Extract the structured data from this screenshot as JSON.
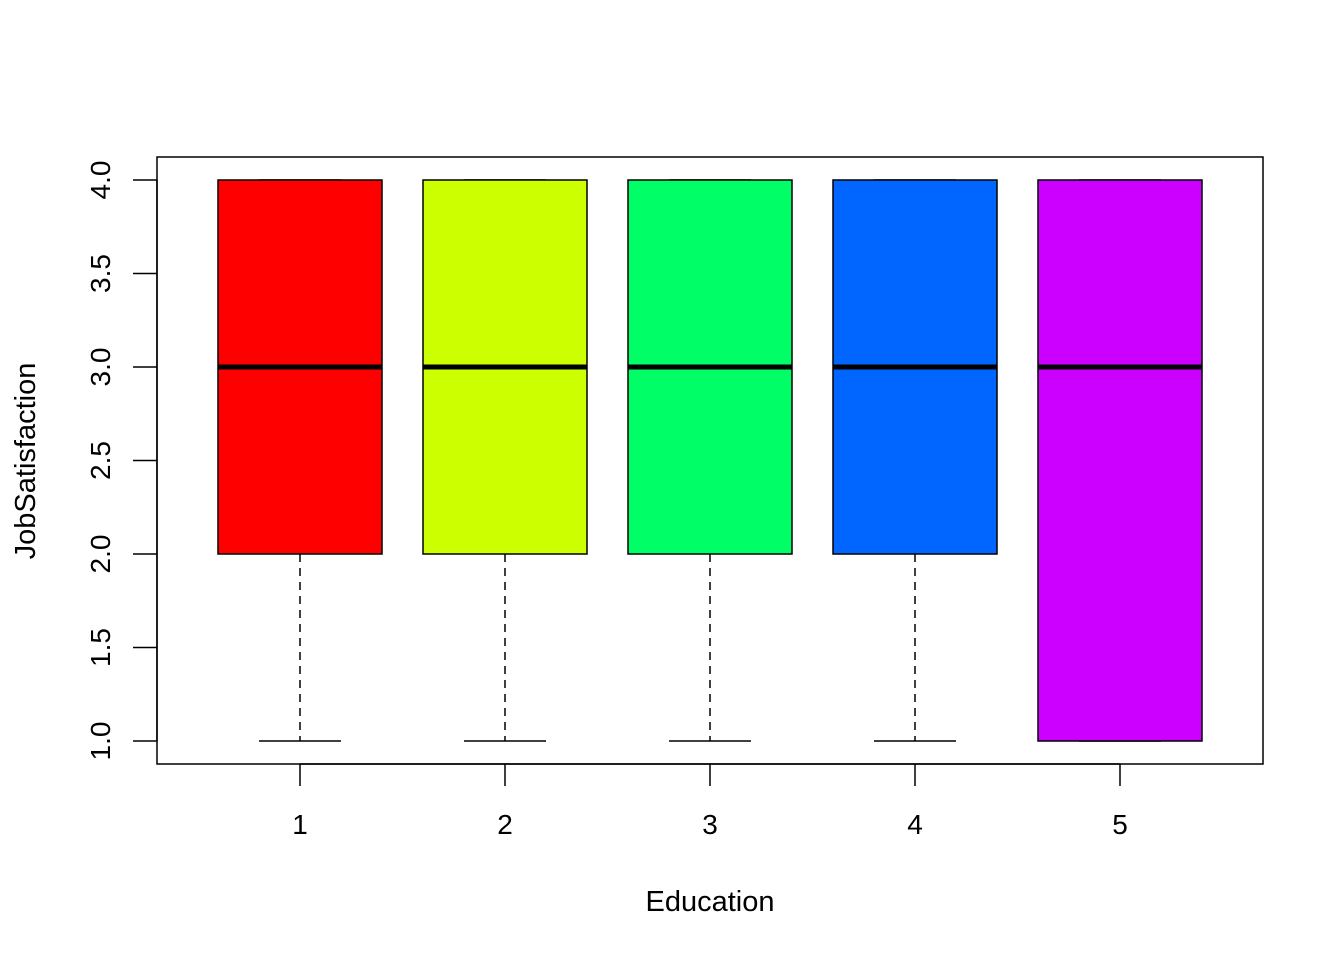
{
  "chart_data": {
    "type": "boxplot",
    "title": "",
    "xlabel": "Education",
    "ylabel": "JobSatisfaction",
    "categories": [
      "1",
      "2",
      "3",
      "4",
      "5"
    ],
    "ylim": [
      1,
      4
    ],
    "yticks": [
      "1.0",
      "1.5",
      "2.0",
      "2.5",
      "3.0",
      "3.5",
      "4.0"
    ],
    "grid": false,
    "boxes": [
      {
        "category": "1",
        "min": 1,
        "q1": 2,
        "median": 3,
        "q3": 4,
        "max": 4,
        "color": "#FF0000"
      },
      {
        "category": "2",
        "min": 1,
        "q1": 2,
        "median": 3,
        "q3": 4,
        "max": 4,
        "color": "#CCFF00"
      },
      {
        "category": "3",
        "min": 1,
        "q1": 2,
        "median": 3,
        "q3": 4,
        "max": 4,
        "color": "#00FF66"
      },
      {
        "category": "4",
        "min": 1,
        "q1": 2,
        "median": 3,
        "q3": 4,
        "max": 4,
        "color": "#0066FF"
      },
      {
        "category": "5",
        "min": 1,
        "q1": 1,
        "median": 3,
        "q3": 4,
        "max": 4,
        "color": "#CC00FF"
      }
    ]
  }
}
